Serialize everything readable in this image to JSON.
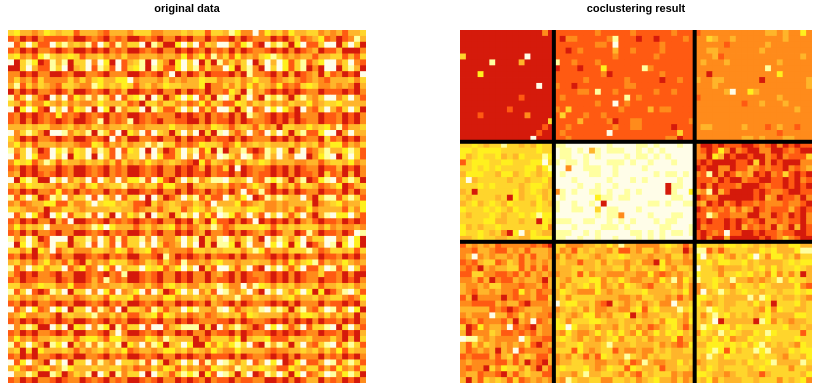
{
  "chart_data": [
    {
      "type": "heatmap",
      "title": "original data",
      "xlabel": "",
      "ylabel": "",
      "rows": 60,
      "cols": 60,
      "value_range": [
        0,
        1
      ],
      "colormap": [
        "#d51a0b",
        "#ff5a12",
        "#ff8b1b",
        "#ffb52a",
        "#ffd52c",
        "#fff01e",
        "#ffffa0",
        "#fffde8"
      ],
      "row_cluster_order": [
        2,
        0,
        1,
        0,
        2,
        1,
        1,
        0,
        2,
        2,
        0,
        1,
        2,
        1,
        0,
        0,
        2,
        1,
        0,
        2,
        1,
        1,
        2,
        0,
        0,
        1,
        2,
        0,
        1,
        2,
        2,
        1,
        0,
        2,
        0,
        1,
        1,
        2,
        0,
        2,
        1,
        0,
        0,
        2,
        1,
        2,
        0,
        1,
        2,
        0,
        1,
        0,
        2,
        1,
        2,
        0,
        1,
        2,
        1,
        0
      ],
      "col_cluster_order": [
        1,
        2,
        0,
        1,
        0,
        2,
        2,
        1,
        0,
        1,
        2,
        0,
        0,
        1,
        2,
        1,
        0,
        2,
        1,
        2,
        0,
        0,
        1,
        2,
        1,
        0,
        2,
        2,
        0,
        1,
        0,
        1,
        2,
        0,
        2,
        1,
        1,
        0,
        2,
        0,
        1,
        2,
        2,
        1,
        0,
        1,
        0,
        2,
        0,
        1,
        2,
        2,
        0,
        1,
        1,
        2,
        0,
        1,
        0,
        2
      ]
    },
    {
      "type": "heatmap",
      "title": "coclustering result",
      "xlabel": "",
      "ylabel": "",
      "rows": 60,
      "cols": 60,
      "value_range": [
        0,
        1
      ],
      "row_clusters": [
        19,
        17,
        24
      ],
      "col_clusters": [
        16,
        24,
        20
      ],
      "block_means": [
        [
          0.06,
          0.2,
          0.32
        ],
        [
          0.58,
          0.9,
          0.18
        ],
        [
          0.33,
          0.46,
          0.55
        ]
      ],
      "block_noise": [
        [
          0.06,
          0.07,
          0.07
        ],
        [
          0.14,
          0.1,
          0.22
        ],
        [
          0.22,
          0.22,
          0.22
        ]
      ],
      "separator_color": "#000000"
    }
  ]
}
